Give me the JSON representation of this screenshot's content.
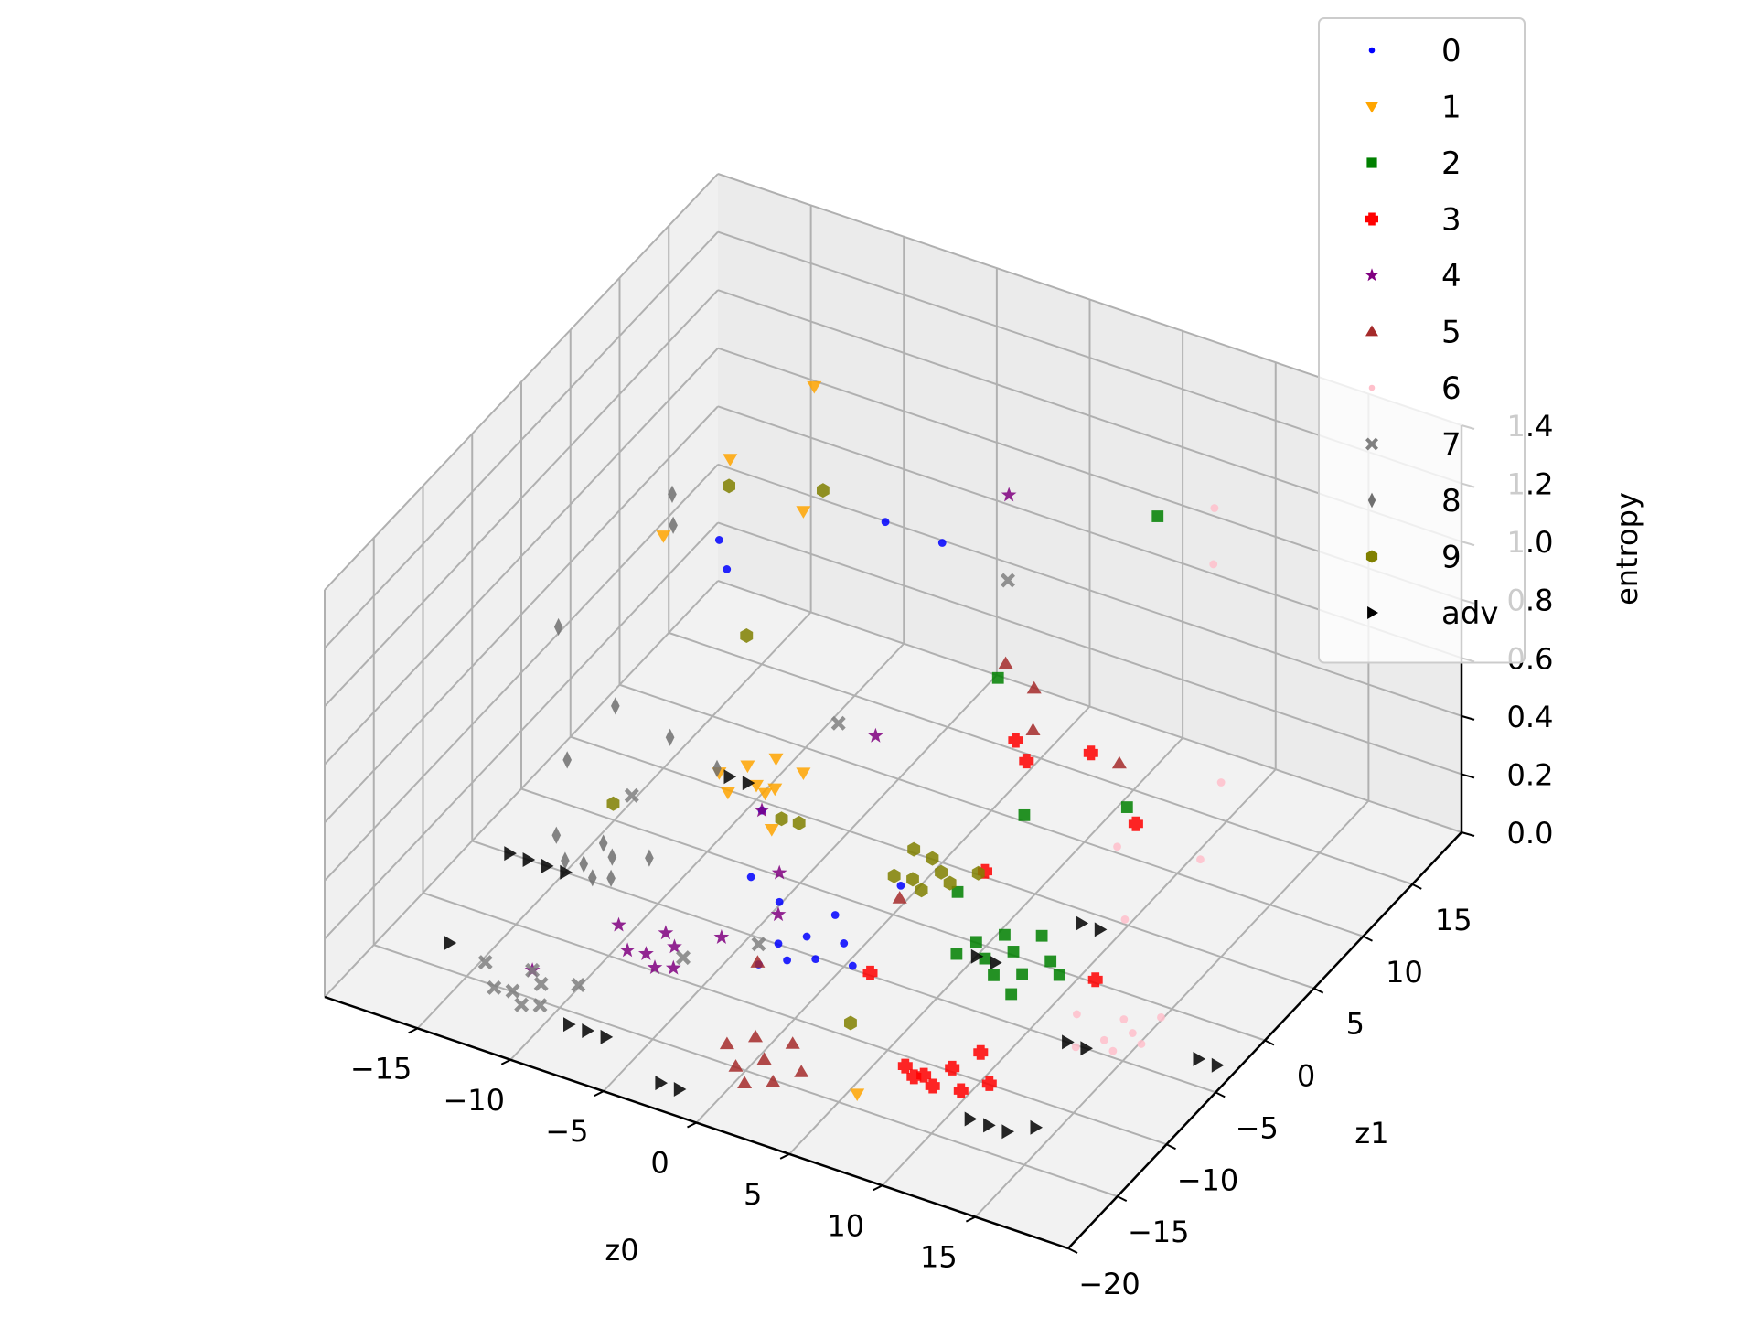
{
  "chart_data": {
    "type": "scatter",
    "projection": "3d",
    "title": "",
    "xlabel": "z0",
    "ylabel": "z1",
    "zlabel": "entropy",
    "xlim": [
      -20,
      20
    ],
    "ylim": [
      -20,
      20
    ],
    "zlim": [
      0,
      1.4
    ],
    "grid": true,
    "legend_position": "top-right",
    "x_ticks": [
      -15,
      -10,
      -5,
      0,
      5,
      10,
      15
    ],
    "x_tick_labels": [
      "−15",
      "−10",
      "−5",
      "0",
      "5",
      "10",
      "15"
    ],
    "y_ticks": [
      -20,
      -15,
      -10,
      -5,
      0,
      5,
      10,
      15
    ],
    "y_tick_labels": [
      "−20",
      "−15",
      "−10",
      "−5",
      "0",
      "5",
      "10",
      "15"
    ],
    "z_ticks": [
      0.0,
      0.2,
      0.4,
      0.6,
      0.8,
      1.0,
      1.2,
      1.4
    ],
    "z_tick_labels": [
      "0.0",
      "0.2",
      "0.4",
      "0.6",
      "0.8",
      "1.0",
      "1.2",
      "1.4"
    ],
    "series": [
      {
        "name": "0",
        "color": "#0000ff",
        "marker": "circle",
        "points": [
          [
            -3,
            -6,
            0.05
          ],
          [
            -2,
            -5,
            0.06
          ],
          [
            -1,
            -6,
            0.04
          ],
          [
            0,
            -5,
            0.08
          ],
          [
            -2,
            -7,
            0.05
          ],
          [
            -4,
            -4,
            0.1
          ],
          [
            1,
            -6,
            0.06
          ],
          [
            -3,
            -8,
            0.05
          ],
          [
            -1,
            -4,
            0.12
          ],
          [
            -5,
            -5,
            0.2
          ],
          [
            -10,
            2,
            0.9
          ],
          [
            -12,
            5,
            0.85
          ],
          [
            -2,
            3,
            1.2
          ],
          [
            0,
            5,
            1.1
          ],
          [
            -6,
            -2,
            0.3
          ],
          [
            2,
            -3,
            0.25
          ]
        ]
      },
      {
        "name": "1",
        "color": "#ffa500",
        "marker": "triangle-down",
        "points": [
          [
            -10,
            5,
            0.05
          ],
          [
            -11,
            6,
            0.06
          ],
          [
            -9,
            4,
            0.08
          ],
          [
            -12,
            5,
            0.05
          ],
          [
            -10,
            7,
            0.07
          ],
          [
            -8,
            6,
            0.1
          ],
          [
            -11,
            4,
            0.04
          ],
          [
            -9,
            5,
            0.06
          ],
          [
            -13,
            8,
            1.0
          ],
          [
            -9,
            9,
            1.3
          ],
          [
            -8,
            6,
            1.0
          ],
          [
            -15,
            5,
            0.8
          ],
          [
            6,
            -15,
            0.05
          ],
          [
            -6,
            -1,
            0.2
          ]
        ]
      },
      {
        "name": "2",
        "color": "#008000",
        "marker": "square",
        "points": [
          [
            6,
            -2,
            0.05
          ],
          [
            7,
            -1,
            0.06
          ],
          [
            8,
            -2,
            0.04
          ],
          [
            5,
            -3,
            0.08
          ],
          [
            7,
            -3,
            0.05
          ],
          [
            9,
            -1,
            0.07
          ],
          [
            6,
            0,
            0.06
          ],
          [
            8,
            0,
            0.1
          ],
          [
            5,
            -1,
            0.05
          ],
          [
            10,
            -2,
            0.08
          ],
          [
            4,
            -1,
            0.2
          ],
          [
            10,
            8,
            1.3
          ],
          [
            3,
            5,
            0.7
          ],
          [
            6,
            2,
            0.4
          ],
          [
            11,
            3,
            0.5
          ],
          [
            9,
            -5,
            0.1
          ]
        ]
      },
      {
        "name": "3",
        "color": "#ff0000",
        "marker": "plus",
        "points": [
          [
            8,
            -12,
            0.05
          ],
          [
            9,
            -11,
            0.06
          ],
          [
            10,
            -12,
            0.04
          ],
          [
            8,
            -13,
            0.08
          ],
          [
            11,
            -11,
            0.05
          ],
          [
            9,
            -13,
            0.07
          ],
          [
            7,
            -12,
            0.06
          ],
          [
            10,
            -10,
            0.1
          ],
          [
            5,
            3,
            0.6
          ],
          [
            8,
            5,
            0.55
          ],
          [
            12,
            2,
            0.5
          ],
          [
            4,
            6,
            0.4
          ],
          [
            6,
            -2,
            0.35
          ],
          [
            13,
            -4,
            0.2
          ],
          [
            3,
            -8,
            0.15
          ]
        ]
      },
      {
        "name": "4",
        "color": "#800080",
        "marker": "star",
        "points": [
          [
            -8,
            -10,
            0.05
          ],
          [
            -7,
            -9,
            0.06
          ],
          [
            -9,
            -10,
            0.04
          ],
          [
            -6,
            -11,
            0.08
          ],
          [
            -8,
            -8,
            0.05
          ],
          [
            -10,
            -9,
            0.07
          ],
          [
            -7,
            -11,
            0.06
          ],
          [
            -5,
            -8,
            0.1
          ],
          [
            -4,
            -4,
            0.2
          ],
          [
            -6,
            -2,
            0.3
          ],
          [
            -2,
            2,
            0.5
          ],
          [
            2,
            8,
            1.2
          ],
          [
            -12,
            -14,
            0.05
          ],
          [
            -3,
            -6,
            0.15
          ]
        ]
      },
      {
        "name": "5",
        "color": "#a52a2a",
        "marker": "triangle-up",
        "points": [
          [
            0,
            -16,
            0.05
          ],
          [
            1,
            -15,
            0.06
          ],
          [
            2,
            -16,
            0.04
          ],
          [
            0,
            -14,
            0.08
          ],
          [
            1,
            -17,
            0.05
          ],
          [
            -1,
            -15,
            0.07
          ],
          [
            3,
            -15,
            0.06
          ],
          [
            2,
            -14,
            0.1
          ],
          [
            5,
            2,
            0.9
          ],
          [
            6,
            3,
            0.8
          ],
          [
            7,
            1,
            0.75
          ],
          [
            3,
            -5,
            0.3
          ],
          [
            9,
            6,
            0.5
          ],
          [
            -2,
            -10,
            0.15
          ]
        ]
      },
      {
        "name": "6",
        "color": "#ffc0cb",
        "marker": "circle",
        "points": [
          [
            14,
            -5,
            0.05
          ],
          [
            15,
            -4,
            0.06
          ],
          [
            13,
            -6,
            0.04
          ],
          [
            16,
            -5,
            0.08
          ],
          [
            14,
            -3,
            0.05
          ],
          [
            15,
            -6,
            0.07
          ],
          [
            12,
            -4,
            0.06
          ],
          [
            16,
            -3,
            0.1
          ],
          [
            13,
            8,
            1.2
          ],
          [
            12,
            10,
            1.3
          ],
          [
            15,
            5,
            0.6
          ],
          [
            11,
            2,
            0.4
          ],
          [
            16,
            1,
            0.5
          ],
          [
            13,
            -1,
            0.3
          ]
        ]
      },
      {
        "name": "7",
        "color": "#808080",
        "marker": "x",
        "points": [
          [
            -12,
            -16,
            0.05
          ],
          [
            -11,
            -15,
            0.06
          ],
          [
            -13,
            -16,
            0.04
          ],
          [
            -10,
            -17,
            0.08
          ],
          [
            -12,
            -14,
            0.05
          ],
          [
            -14,
            -15,
            0.07
          ],
          [
            -11,
            -17,
            0.06
          ],
          [
            -9,
            -15,
            0.1
          ],
          [
            -13,
            -2,
            0.2
          ],
          [
            -4,
            2,
            0.5
          ],
          [
            3,
            6,
            1.0
          ],
          [
            -3,
            -8,
            0.12
          ],
          [
            -6,
            -10,
            0.08
          ]
        ]
      },
      {
        "name": "8",
        "color": "#707070",
        "marker": "thin-diamond",
        "points": [
          [
            -14,
            -5,
            0.05
          ],
          [
            -13,
            -4,
            0.06
          ],
          [
            -15,
            -5,
            0.04
          ],
          [
            -12,
            -6,
            0.08
          ],
          [
            -14,
            -3,
            0.05
          ],
          [
            -16,
            -4,
            0.07
          ],
          [
            -13,
            -6,
            0.06
          ],
          [
            -11,
            -4,
            0.1
          ],
          [
            -14,
            4,
            1.0
          ],
          [
            -18,
            0,
            0.6
          ],
          [
            -16,
            2,
            0.3
          ],
          [
            -12,
            0,
            0.35
          ],
          [
            -10,
            1,
            0.25
          ],
          [
            -17,
            -1,
            0.2
          ],
          [
            -15,
            6,
            0.8
          ]
        ]
      },
      {
        "name": "9",
        "color": "#808000",
        "marker": "hexagon",
        "points": [
          [
            0,
            2,
            0.05
          ],
          [
            1,
            3,
            0.06
          ],
          [
            -1,
            2,
            0.04
          ],
          [
            2,
            2,
            0.08
          ],
          [
            0,
            4,
            0.05
          ],
          [
            1,
            1,
            0.07
          ],
          [
            -1,
            4,
            0.06
          ],
          [
            3,
            3,
            0.1
          ],
          [
            -12,
            6,
            1.0
          ],
          [
            -8,
            8,
            1.0
          ],
          [
            -10,
            4,
            0.6
          ],
          [
            -6,
            0,
            0.2
          ],
          [
            -4,
            -2,
            0.3
          ],
          [
            -14,
            -2,
            0.15
          ],
          [
            3,
            -10,
            0.05
          ]
        ]
      },
      {
        "name": "adv",
        "color": "#000000",
        "marker": "triangle-right",
        "points": [
          [
            -18,
            -5,
            0.0
          ],
          [
            -17,
            -5,
            0.0
          ],
          [
            -16,
            -5,
            0.0
          ],
          [
            -15,
            -5,
            0.0
          ],
          [
            -9,
            -16,
            0.0
          ],
          [
            -8,
            -16,
            0.0
          ],
          [
            -7,
            -16,
            0.0
          ],
          [
            -3,
            -18,
            0.0
          ],
          [
            -2,
            -18,
            0.0
          ],
          [
            11,
            -13,
            0.0
          ],
          [
            12,
            -13,
            0.0
          ],
          [
            13,
            -13,
            0.0
          ],
          [
            14,
            -12,
            0.0
          ],
          [
            18,
            -3,
            0.0
          ],
          [
            19,
            -3,
            0.0
          ],
          [
            5,
            -1,
            0.0
          ],
          [
            6,
            -1,
            0.0
          ],
          [
            12,
            -5,
            0.0
          ],
          [
            13,
            -5,
            0.0
          ],
          [
            -12,
            6,
            0.0
          ],
          [
            -11,
            6,
            0.0
          ],
          [
            -17,
            -13,
            0.0
          ],
          [
            8,
            4,
            0.0
          ],
          [
            9,
            4,
            0.0
          ]
        ]
      }
    ]
  }
}
